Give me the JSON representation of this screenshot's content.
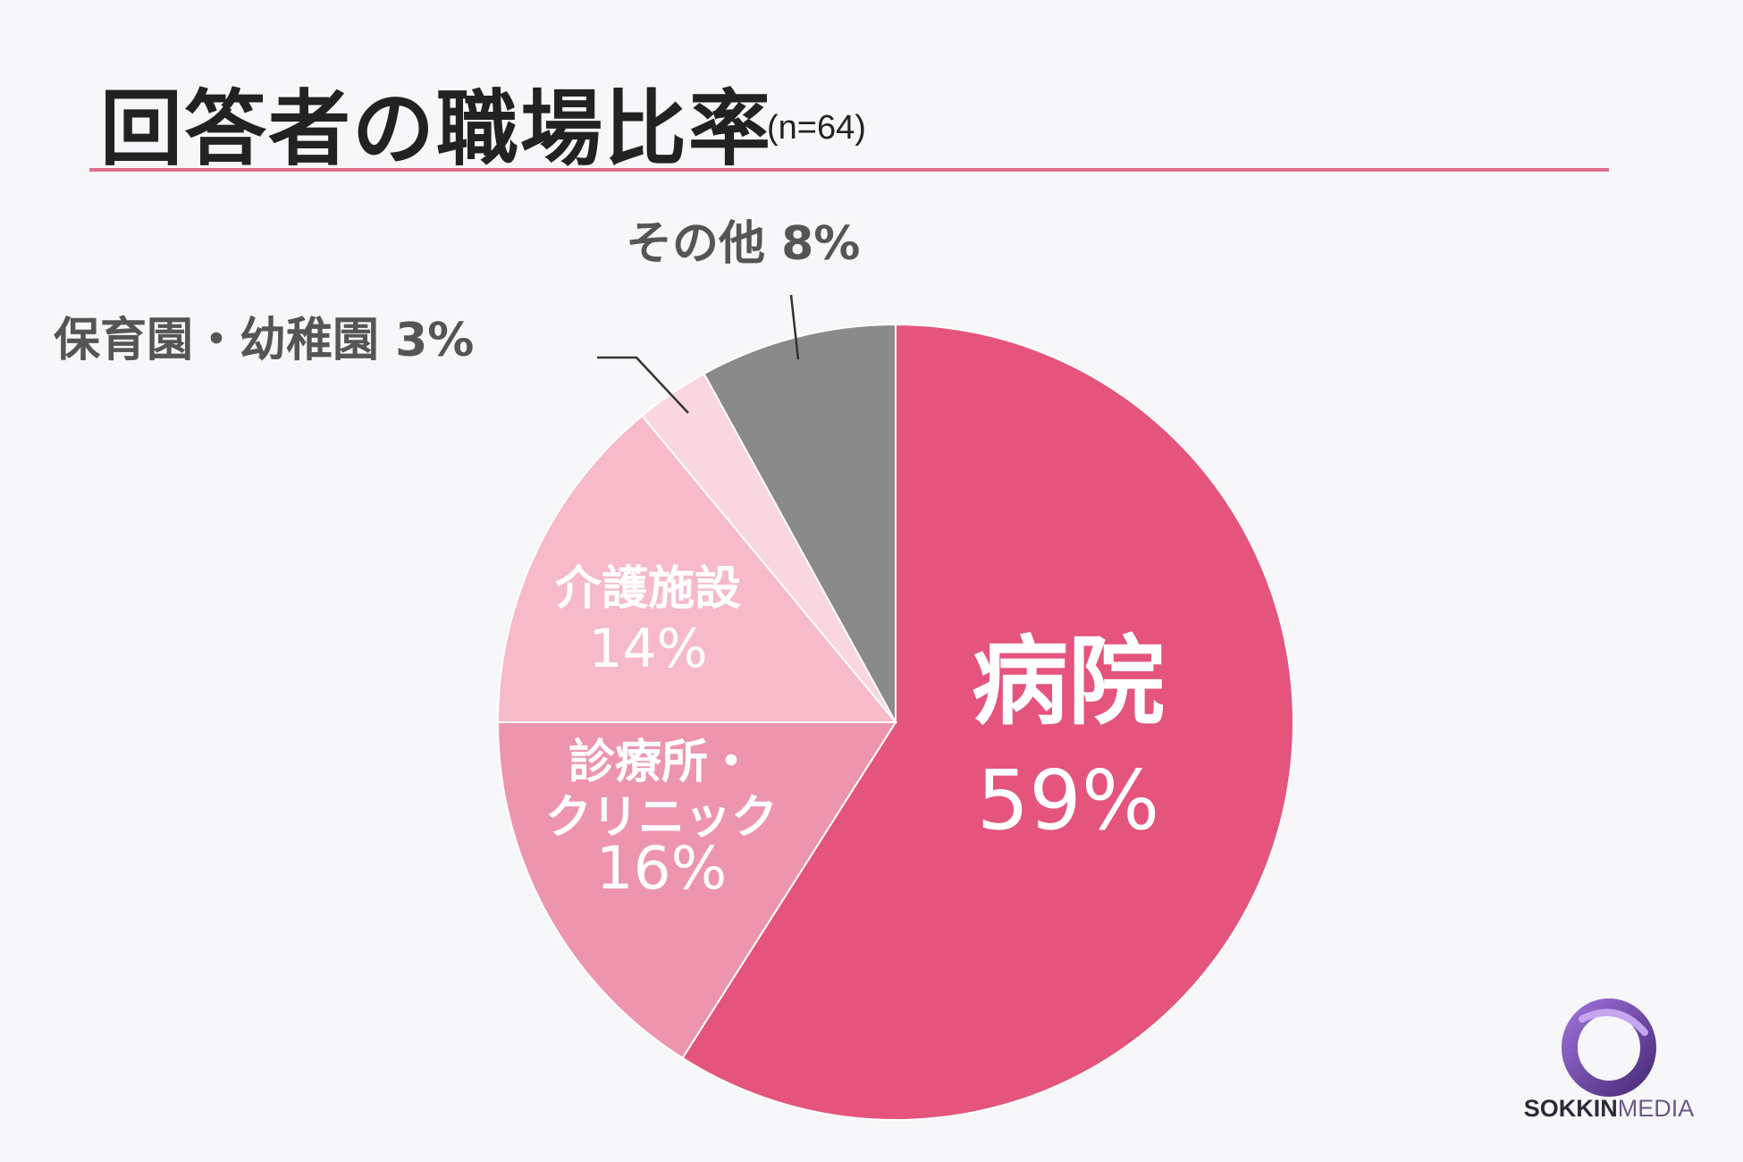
{
  "header": {
    "title": "回答者の職場比率",
    "subtitle": "(n=64)"
  },
  "chart_data": {
    "type": "pie",
    "slices": [
      {
        "label_lines": [
          "病院"
        ],
        "pct_label": "59%",
        "value": 59,
        "color": "#e4547d",
        "label_color": "#ffffff"
      },
      {
        "label_lines": [
          "診療所・",
          "クリニック"
        ],
        "pct_label": "16%",
        "value": 16,
        "color": "#ee95ae",
        "label_color": "#ffffff"
      },
      {
        "label_lines": [
          "介護施設"
        ],
        "pct_label": "14%",
        "value": 14,
        "color": "#f6bac8",
        "label_color": "#ffffff"
      },
      {
        "label_lines": [
          "保育園・幼稚園"
        ],
        "pct_label": "3%",
        "value": 3,
        "color": "#fad7de",
        "label_color": "#555555"
      },
      {
        "label_lines": [
          "その他"
        ],
        "pct_label": "8%",
        "value": 8,
        "color": "#8a8a8a",
        "label_color": "#555555"
      }
    ]
  },
  "logo": {
    "bold": "SOKKIN",
    "light": "MEDIA"
  }
}
